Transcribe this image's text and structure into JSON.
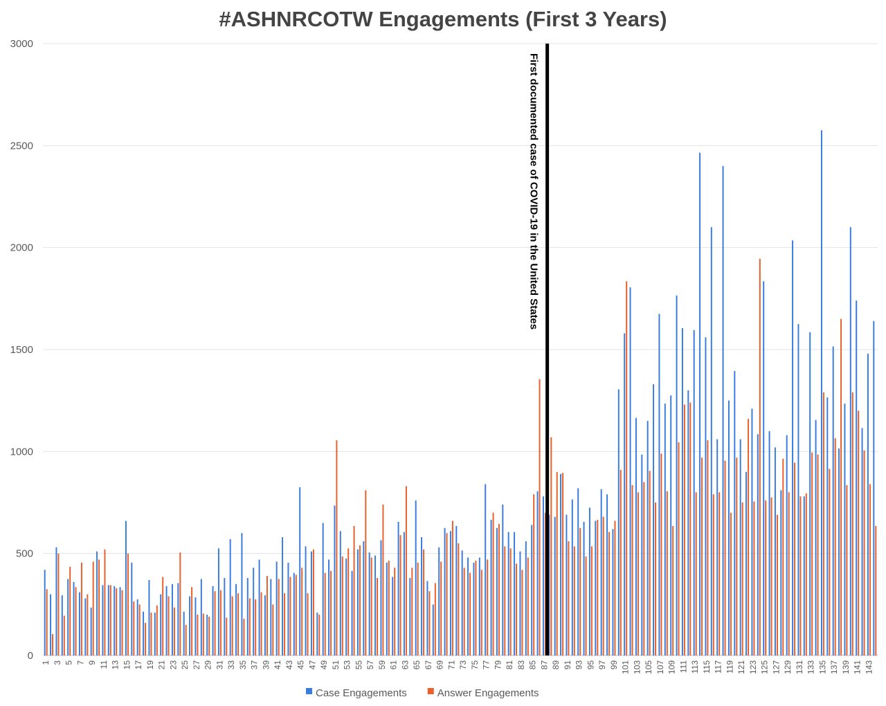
{
  "chart_data": {
    "type": "bar",
    "title": "#ASHNRCOTW Engagements (First 3 Years)",
    "annotation": {
      "text": "First documented case of COVID-19 in the United States",
      "x": 87.5
    },
    "categories": [
      1,
      null,
      3,
      null,
      5,
      null,
      7,
      null,
      9,
      null,
      11,
      null,
      13,
      null,
      15,
      null,
      17,
      null,
      19,
      null,
      21,
      null,
      23,
      null,
      25,
      null,
      27,
      null,
      29,
      null,
      31,
      null,
      33,
      null,
      35,
      null,
      37,
      null,
      39,
      null,
      41,
      null,
      43,
      null,
      45,
      null,
      47,
      null,
      49,
      null,
      51,
      null,
      53,
      null,
      55,
      null,
      57,
      null,
      59,
      null,
      61,
      null,
      63,
      null,
      65,
      null,
      67,
      null,
      69,
      null,
      71,
      null,
      73,
      null,
      75,
      null,
      77,
      null,
      79,
      null,
      81,
      null,
      83,
      null,
      85,
      null,
      87,
      null,
      89,
      null,
      91,
      null,
      93,
      null,
      95,
      null,
      97,
      null,
      99,
      null,
      101,
      null,
      103,
      null,
      105,
      null,
      107,
      null,
      109,
      null,
      111,
      null,
      113,
      null,
      115,
      null,
      117,
      null,
      119,
      null,
      121,
      null,
      123,
      null,
      125,
      null,
      127,
      null,
      129,
      null,
      131,
      null,
      133,
      null,
      135,
      null,
      137,
      null,
      139,
      null,
      141,
      null,
      143,
      null
    ],
    "series": [
      {
        "name": "Case Engagements",
        "color": "#3b7ddd",
        "values": [
          420,
          300,
          530,
          295,
          375,
          360,
          310,
          280,
          235,
          510,
          345,
          345,
          340,
          335,
          660,
          455,
          275,
          215,
          370,
          210,
          300,
          340,
          350,
          355,
          215,
          290,
          285,
          375,
          200,
          340,
          525,
          380,
          570,
          350,
          600,
          380,
          430,
          470,
          295,
          375,
          460,
          580,
          455,
          405,
          825,
          535,
          510,
          210,
          650,
          470,
          735,
          610,
          475,
          415,
          520,
          560,
          505,
          490,
          565,
          455,
          385,
          655,
          605,
          380,
          760,
          580,
          365,
          250,
          530,
          625,
          610,
          635,
          515,
          480,
          455,
          480,
          840,
          665,
          625,
          740,
          605,
          605,
          510,
          560,
          640,
          805,
          780,
          690,
          680,
          890,
          690,
          765,
          820,
          655,
          725,
          660,
          815,
          790,
          620,
          1305,
          1580,
          1805,
          1165,
          985,
          1150,
          1330,
          1675,
          1235,
          1275,
          1765,
          1605,
          1300,
          1595,
          2465,
          1560,
          2100,
          1060,
          2400,
          1250,
          1395,
          1060,
          900,
          1210,
          1085,
          1835,
          1100,
          1020,
          810,
          1080,
          2035,
          1625,
          780,
          1585,
          1155,
          2575,
          1265,
          1515,
          1015,
          1235,
          2100,
          1740,
          1115,
          1480,
          1640
        ]
      },
      {
        "name": "Answer Engagements",
        "color": "#e8612c",
        "values": [
          325,
          105,
          500,
          195,
          435,
          335,
          455,
          300,
          460,
          470,
          520,
          345,
          330,
          320,
          500,
          265,
          250,
          160,
          210,
          245,
          385,
          290,
          235,
          505,
          150,
          335,
          200,
          205,
          190,
          315,
          320,
          185,
          290,
          305,
          180,
          280,
          275,
          310,
          390,
          250,
          375,
          305,
          385,
          395,
          430,
          305,
          520,
          200,
          405,
          415,
          1055,
          485,
          525,
          635,
          540,
          810,
          480,
          380,
          740,
          465,
          430,
          590,
          830,
          430,
          455,
          520,
          315,
          355,
          460,
          600,
          660,
          550,
          430,
          405,
          465,
          420,
          470,
          700,
          645,
          535,
          525,
          450,
          420,
          480,
          790,
          1355,
          700,
          1070,
          900,
          895,
          560,
          535,
          625,
          485,
          535,
          665,
          680,
          605,
          660,
          910,
          1835,
          835,
          800,
          850,
          905,
          750,
          990,
          805,
          635,
          1045,
          1230,
          1240,
          800,
          970,
          1055,
          790,
          800,
          955,
          700,
          970,
          750,
          1160,
          755,
          1945,
          760,
          775,
          690,
          965,
          800,
          945,
          780,
          795,
          995,
          985,
          1290,
          915,
          1065,
          1650,
          835,
          1290,
          1200,
          1005,
          840,
          635
        ]
      }
    ],
    "ylim": [
      0,
      3000
    ],
    "yticks": [
      0,
      500,
      1000,
      1500,
      2000,
      2500,
      3000
    ],
    "grid": true,
    "legend": "bottom"
  }
}
